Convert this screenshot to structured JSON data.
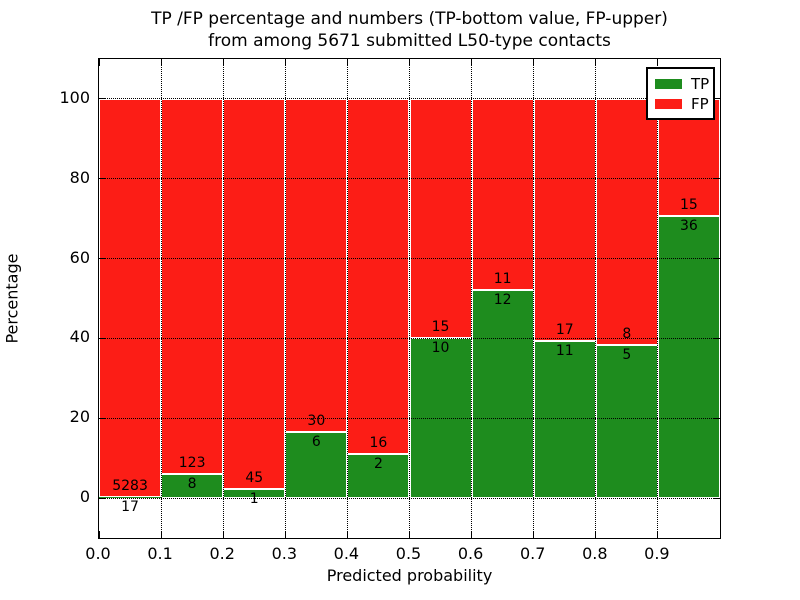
{
  "title": {
    "line1": "TP /FP percentage and numbers (TP-bottom value, FP-upper)",
    "line2": "from among 5671 submitted L50-type contacts"
  },
  "axes": {
    "xlabel": "Predicted probability",
    "ylabel": "Percentage",
    "x_tick_labels": [
      "0.0",
      "0.1",
      "0.2",
      "0.3",
      "0.4",
      "0.5",
      "0.6",
      "0.7",
      "0.8",
      "0.9"
    ],
    "y_tick_labels": [
      "0",
      "20",
      "40",
      "60",
      "80",
      "100"
    ],
    "y_tick_values": [
      0,
      20,
      40,
      60,
      80,
      100
    ]
  },
  "legend": {
    "items": [
      {
        "label": "TP",
        "color": "#1e8c1e",
        "swatch": "green-rect"
      },
      {
        "label": "FP",
        "color": "#fc1d16",
        "swatch": "red-rect"
      }
    ]
  },
  "colors": {
    "tp_green": "#1e8c1e",
    "fp_red": "#fc1d16",
    "bar_edge": "#ffffff",
    "grid": "#000000",
    "text": "#000000"
  },
  "chart_data": {
    "type": "bar",
    "stacked": true,
    "units": "percent",
    "title": "TP /FP percentage and numbers (TP-bottom value, FP-upper) from among 5671 submitted L50-type contacts",
    "xlabel": "Predicted probability",
    "ylabel": "Percentage",
    "xlim": [
      0.0,
      1.0
    ],
    "ylim": [
      -10,
      110
    ],
    "grid": true,
    "legend_position": "upper right",
    "total_contacts": 5671,
    "bin_width": 0.1,
    "categories": [
      "0.0-0.1",
      "0.1-0.2",
      "0.2-0.3",
      "0.3-0.4",
      "0.4-0.5",
      "0.5-0.6",
      "0.6-0.7",
      "0.7-0.8",
      "0.8-0.9",
      "0.9-1.0"
    ],
    "series": [
      {
        "name": "TP",
        "color": "#1e8c1e",
        "counts": [
          17,
          8,
          1,
          6,
          2,
          10,
          12,
          11,
          5,
          36
        ],
        "percent": [
          0.3208,
          6.1069,
          2.1739,
          16.6667,
          11.1111,
          40.0,
          52.1739,
          39.2857,
          38.4615,
          70.5882
        ]
      },
      {
        "name": "FP",
        "color": "#fc1d16",
        "counts": [
          5283,
          123,
          45,
          30,
          16,
          15,
          11,
          17,
          8,
          15
        ],
        "percent": [
          99.6792,
          93.8931,
          97.8261,
          83.3333,
          88.8889,
          60.0,
          47.8261,
          60.7143,
          61.5385,
          29.4118
        ]
      }
    ],
    "annotation_rule": "FP count drawn just above the green/red boundary, TP count just below it"
  }
}
